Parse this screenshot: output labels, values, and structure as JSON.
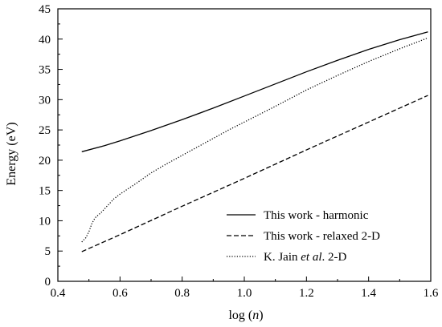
{
  "chart_data": {
    "type": "line",
    "title": "",
    "xlabel": {
      "prefix": "log (",
      "var": "n",
      "suffix": ")"
    },
    "ylabel": "Energy (eV)",
    "xlim": [
      0.4,
      1.6
    ],
    "ylim": [
      0,
      45
    ],
    "xticks": [
      0.4,
      0.6,
      0.8,
      1.0,
      1.2,
      1.4,
      1.6
    ],
    "xtick_labels": [
      "0.4",
      "0.6",
      "0.8",
      "1.0",
      "1.2",
      "1.4",
      "1.6"
    ],
    "yticks": [
      0,
      5,
      10,
      15,
      20,
      25,
      30,
      35,
      40,
      45
    ],
    "ytick_labels": [
      "0",
      "5",
      "10",
      "15",
      "20",
      "25",
      "30",
      "35",
      "40",
      "45"
    ],
    "grid": false,
    "legend_position": "bottom-right",
    "series": [
      {
        "name": "This work - harmonic",
        "dash": "solid",
        "x": [
          0.477,
          0.55,
          0.6,
          0.7,
          0.8,
          0.9,
          1.0,
          1.1,
          1.2,
          1.3,
          1.4,
          1.5,
          1.591
        ],
        "y": [
          21.4,
          22.4,
          23.2,
          24.9,
          26.7,
          28.6,
          30.6,
          32.6,
          34.6,
          36.5,
          38.3,
          39.9,
          41.2
        ]
      },
      {
        "name": "This work - relaxed 2-D",
        "dash": "dashed",
        "x": [
          0.477,
          0.6,
          0.8,
          1.0,
          1.2,
          1.4,
          1.591
        ],
        "y": [
          4.9,
          7.7,
          12.4,
          17.0,
          21.7,
          26.3,
          30.7
        ]
      },
      {
        "name_parts": [
          "K. Jain ",
          "et al",
          ". 2-D"
        ],
        "dash": "dotted",
        "x": [
          0.477,
          0.49,
          0.5,
          0.51,
          0.52,
          0.54,
          0.56,
          0.58,
          0.6,
          0.65,
          0.7,
          0.75,
          0.8,
          0.85,
          0.9,
          0.95,
          1.0,
          1.1,
          1.2,
          1.3,
          1.4,
          1.5,
          1.591
        ],
        "y": [
          6.5,
          7.2,
          8.2,
          9.6,
          10.5,
          11.4,
          12.5,
          13.6,
          14.4,
          16.1,
          17.9,
          19.4,
          20.8,
          22.2,
          23.6,
          25.0,
          26.3,
          28.9,
          31.6,
          34.0,
          36.3,
          38.4,
          40.2
        ]
      }
    ]
  }
}
